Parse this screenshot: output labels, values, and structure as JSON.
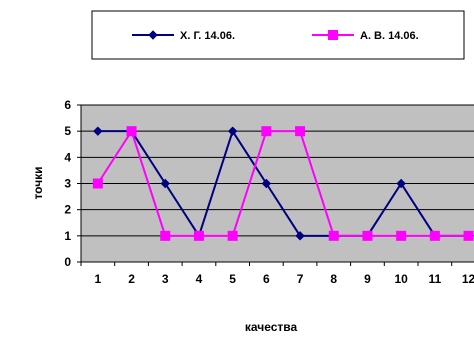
{
  "chart_data": {
    "type": "line",
    "categories": [
      "1",
      "2",
      "3",
      "4",
      "5",
      "6",
      "7",
      "8",
      "9",
      "10",
      "11",
      "12"
    ],
    "series": [
      {
        "name": "Х. Г. 14.06.",
        "values": [
          5,
          5,
          3,
          1,
          5,
          3,
          1,
          1,
          1,
          3,
          1,
          1
        ],
        "color": "#000080",
        "marker": "diamond"
      },
      {
        "name": "А. В. 14.06.",
        "values": [
          3,
          5,
          1,
          1,
          1,
          5,
          5,
          1,
          1,
          1,
          1,
          1
        ],
        "color": "#ff00ff",
        "marker": "square"
      }
    ],
    "title": "",
    "xlabel": "качества",
    "ylabel": "точки",
    "ylim": [
      0,
      6
    ],
    "yticks": [
      "0",
      "1",
      "2",
      "3",
      "4",
      "5",
      "6"
    ],
    "grid": true,
    "plot_background": "#c0c0c0",
    "legend_position": "top"
  }
}
